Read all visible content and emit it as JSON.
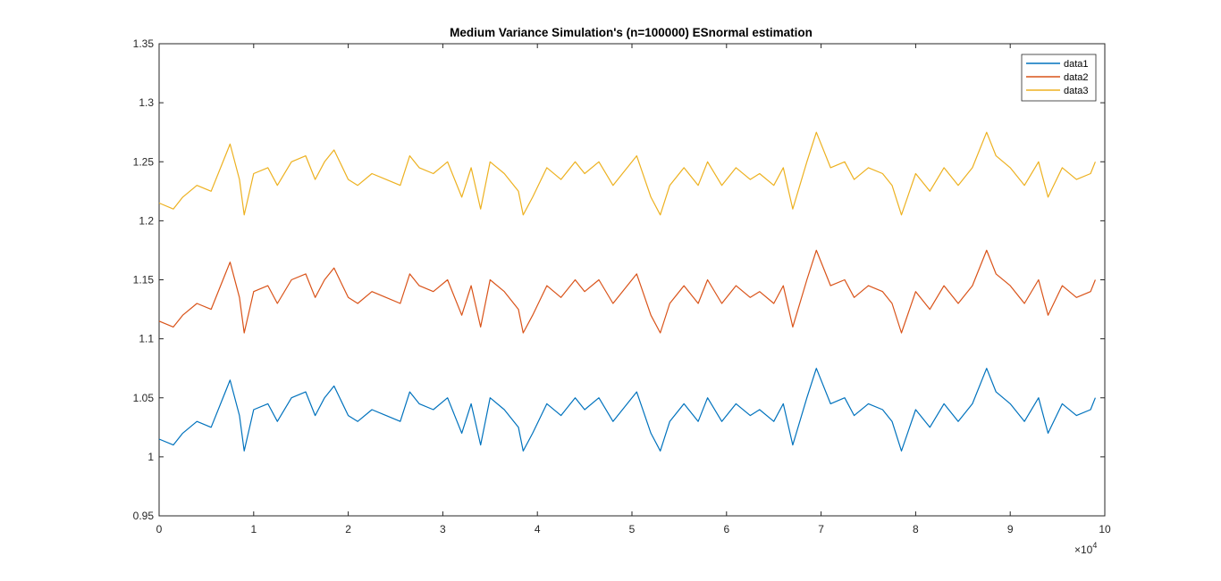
{
  "chart_data": {
    "type": "line",
    "title": "Medium Variance Simulation's (n=100000) ESnormal estimation",
    "xlabel": "",
    "ylabel": "",
    "xlim": [
      0,
      100000
    ],
    "ylim": [
      0.95,
      1.35
    ],
    "x_ticks": [
      0,
      10000,
      20000,
      30000,
      40000,
      50000,
      60000,
      70000,
      80000,
      90000,
      100000
    ],
    "x_tick_labels": [
      "0",
      "1",
      "2",
      "3",
      "4",
      "5",
      "6",
      "7",
      "8",
      "9",
      "10"
    ],
    "x_exponent_label": "×10",
    "x_exponent_power": "4",
    "y_ticks": [
      0.95,
      1.0,
      1.05,
      1.1,
      1.15,
      1.2,
      1.25,
      1.3,
      1.35
    ],
    "y_tick_labels": [
      "0.95",
      "1",
      "1.05",
      "1.1",
      "1.15",
      "1.2",
      "1.25",
      "1.3",
      "1.35"
    ],
    "grid": false,
    "legend_position": "top-right",
    "x": [
      0,
      1500,
      2500,
      4000,
      5500,
      7000,
      7500,
      8500,
      9000,
      10000,
      11500,
      12500,
      14000,
      15500,
      16500,
      17500,
      18500,
      20000,
      21000,
      22500,
      24000,
      25500,
      26500,
      27500,
      29000,
      30500,
      32000,
      33000,
      34000,
      35000,
      36500,
      38000,
      38500,
      39500,
      41000,
      42500,
      44000,
      45000,
      46500,
      48000,
      49000,
      50500,
      52000,
      53000,
      54000,
      55500,
      57000,
      58000,
      59500,
      61000,
      62500,
      63500,
      65000,
      66000,
      67000,
      68500,
      69500,
      71000,
      72500,
      73500,
      75000,
      76500,
      77500,
      78500,
      80000,
      81500,
      83000,
      84500,
      86000,
      87500,
      88500,
      90000,
      91500,
      93000,
      94000,
      95500,
      97000,
      98500,
      99000
    ],
    "series": [
      {
        "name": "data1",
        "color": "#0072BD",
        "values": [
          1.015,
          1.01,
          1.02,
          1.03,
          1.025,
          1.055,
          1.065,
          1.035,
          1.005,
          1.04,
          1.045,
          1.03,
          1.05,
          1.055,
          1.035,
          1.05,
          1.06,
          1.035,
          1.03,
          1.04,
          1.035,
          1.03,
          1.055,
          1.045,
          1.04,
          1.05,
          1.02,
          1.045,
          1.01,
          1.05,
          1.04,
          1.025,
          1.005,
          1.02,
          1.045,
          1.035,
          1.05,
          1.04,
          1.05,
          1.03,
          1.04,
          1.055,
          1.02,
          1.005,
          1.03,
          1.045,
          1.03,
          1.05,
          1.03,
          1.045,
          1.035,
          1.04,
          1.03,
          1.045,
          1.01,
          1.05,
          1.075,
          1.045,
          1.05,
          1.035,
          1.045,
          1.04,
          1.03,
          1.005,
          1.04,
          1.025,
          1.045,
          1.03,
          1.045,
          1.075,
          1.055,
          1.045,
          1.03,
          1.05,
          1.02,
          1.045,
          1.035,
          1.04,
          1.05
        ]
      },
      {
        "name": "data2",
        "color": "#D95319",
        "values": [
          1.115,
          1.11,
          1.12,
          1.13,
          1.125,
          1.155,
          1.165,
          1.135,
          1.105,
          1.14,
          1.145,
          1.13,
          1.15,
          1.155,
          1.135,
          1.15,
          1.16,
          1.135,
          1.13,
          1.14,
          1.135,
          1.13,
          1.155,
          1.145,
          1.14,
          1.15,
          1.12,
          1.145,
          1.11,
          1.15,
          1.14,
          1.125,
          1.105,
          1.12,
          1.145,
          1.135,
          1.15,
          1.14,
          1.15,
          1.13,
          1.14,
          1.155,
          1.12,
          1.105,
          1.13,
          1.145,
          1.13,
          1.15,
          1.13,
          1.145,
          1.135,
          1.14,
          1.13,
          1.145,
          1.11,
          1.15,
          1.175,
          1.145,
          1.15,
          1.135,
          1.145,
          1.14,
          1.13,
          1.105,
          1.14,
          1.125,
          1.145,
          1.13,
          1.145,
          1.175,
          1.155,
          1.145,
          1.13,
          1.15,
          1.12,
          1.145,
          1.135,
          1.14,
          1.15
        ]
      },
      {
        "name": "data3",
        "color": "#EDB120",
        "values": [
          1.215,
          1.21,
          1.22,
          1.23,
          1.225,
          1.255,
          1.265,
          1.235,
          1.205,
          1.24,
          1.245,
          1.23,
          1.25,
          1.255,
          1.235,
          1.25,
          1.26,
          1.235,
          1.23,
          1.24,
          1.235,
          1.23,
          1.255,
          1.245,
          1.24,
          1.25,
          1.22,
          1.245,
          1.21,
          1.25,
          1.24,
          1.225,
          1.205,
          1.22,
          1.245,
          1.235,
          1.25,
          1.24,
          1.25,
          1.23,
          1.24,
          1.255,
          1.22,
          1.205,
          1.23,
          1.245,
          1.23,
          1.25,
          1.23,
          1.245,
          1.235,
          1.24,
          1.23,
          1.245,
          1.21,
          1.25,
          1.275,
          1.245,
          1.25,
          1.235,
          1.245,
          1.24,
          1.23,
          1.205,
          1.24,
          1.225,
          1.245,
          1.23,
          1.245,
          1.275,
          1.255,
          1.245,
          1.23,
          1.25,
          1.22,
          1.245,
          1.235,
          1.24,
          1.25
        ]
      }
    ]
  }
}
